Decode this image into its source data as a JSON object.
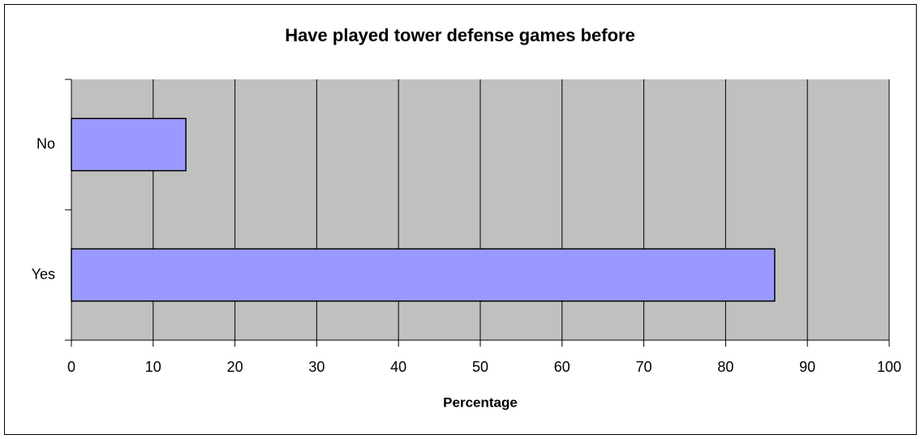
{
  "chart_data": {
    "type": "bar",
    "orientation": "horizontal",
    "title": "Have played tower defense games before",
    "x_label": "Percentage",
    "categories": [
      "No",
      "Yes"
    ],
    "values": [
      14,
      86
    ],
    "color": "#9999ff",
    "xlim": [
      0,
      100
    ],
    "xticks": [
      0,
      10,
      20,
      30,
      40,
      50,
      60,
      70,
      80,
      90,
      100
    ],
    "grid": true
  }
}
